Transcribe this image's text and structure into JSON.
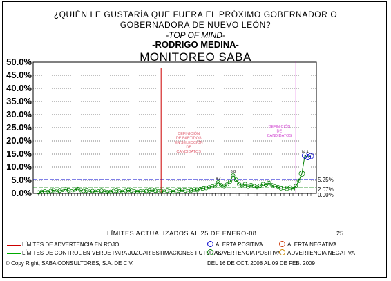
{
  "title_lines": [
    "¿QUIÉN LE GUSTARÍA QUE FUERA EL PRÓXIMO GOBERNADOR O",
    "GOBERNADORA DE NUEVO LEÓN?",
    "-TOP OF MIND-",
    "-RODRIGO MEDINA-",
    "MONITOREO SABA"
  ],
  "colors": {
    "grid": "#000000",
    "series": "#008000",
    "red_line": "#cc0000",
    "magenta_line": "#cc00cc",
    "upper_limit": "#0000cc",
    "mid_limit": "#008000",
    "marker_positive": "#0000cc",
    "marker_negative": "#cc3300",
    "warning_positive": "#008000",
    "warning_negative": "#cc8800"
  },
  "chart_data": {
    "type": "line",
    "title": "MONITOREO SABA",
    "ylabel": "",
    "xlabel": "",
    "ylim": [
      0,
      50
    ],
    "y_ticks": [
      "50.0%",
      "45.0%",
      "40.0%",
      "35.0%",
      "30.0%",
      "25.0%",
      "20.0%",
      "15.0%",
      "10.0%",
      "5.0%",
      "0.0%"
    ],
    "reference_lines": [
      {
        "label": "5.25%",
        "value": 5.25
      },
      {
        "label": "2.07%",
        "value": 2.07
      },
      {
        "label": "0.00%",
        "value": 0.0
      }
    ],
    "events": [
      {
        "label": "DEFINICIÓN DE PARTIDOS EN SELECCIÓN DE CANDIDATOS",
        "index": 40
      },
      {
        "label": "DEFINICIÓN DE CANDIDATOS",
        "index": 86
      }
    ],
    "annotations": [
      {
        "label": "6.8",
        "index": 65
      },
      {
        "label": "4.2",
        "index": 60
      },
      {
        "label": "14.4",
        "index": 89
      }
    ],
    "series": [
      {
        "values": [
          0.4,
          0.6,
          0.8,
          0.5,
          0.9,
          1.2,
          0.7,
          1.0,
          1.3,
          1.5,
          1.1,
          0.8,
          1.4,
          1.6,
          1.2,
          0.9,
          1.1,
          0.7,
          0.9,
          0.6,
          0.8,
          1.0,
          0.7,
          0.5,
          0.6,
          0.9,
          1.1,
          0.8,
          0.6,
          0.9,
          1.2,
          1.0,
          0.8,
          0.6,
          0.8,
          0.7,
          0.9,
          1.1,
          1.3,
          1.0,
          0.8,
          0.9,
          0.7,
          1.0,
          0.8,
          0.6,
          0.9,
          1.1,
          1.3,
          1.0,
          0.8,
          1.1,
          1.4,
          1.2,
          1.6,
          1.8,
          2.0,
          2.3,
          2.6,
          3.0,
          4.2,
          3.1,
          2.5,
          3.4,
          4.5,
          6.8,
          5.2,
          3.5,
          3.0,
          3.6,
          2.5,
          3.2,
          2.8,
          2.3,
          2.9,
          3.6,
          3.2,
          4.0,
          3.1,
          2.6,
          2.4,
          1.9,
          2.1,
          1.7,
          2.2,
          1.6,
          2.8,
          4.8,
          7.5,
          14.4,
          13.8,
          14.2
        ]
      }
    ]
  },
  "footer": {
    "limits_text": "LÍMITES ACTUALIZADOS AL 25 DE ENERO-08",
    "page_number": "25",
    "legend_red": "LÍMITES DE ADVERTENCIA EN ROJO",
    "legend_green": "LÍMITES DE CONTROL EN VERDE PARA JUZGAR ESTIMACIONES FUTURAS",
    "alert_positive": "ALERTA POSITIVA",
    "alert_negative": "ALERTA NEGATIVA",
    "warning_positive": "ADVERTENCIA POSITIVA",
    "warning_negative": "ADVERTENCIA NEGATIVA",
    "copyright": "© Copy Right, SABA CONSULTORES, S.A. DE C.V.",
    "period": "DEL 16 DE OCT. 2008 AL 09 DE FEB. 2009"
  }
}
